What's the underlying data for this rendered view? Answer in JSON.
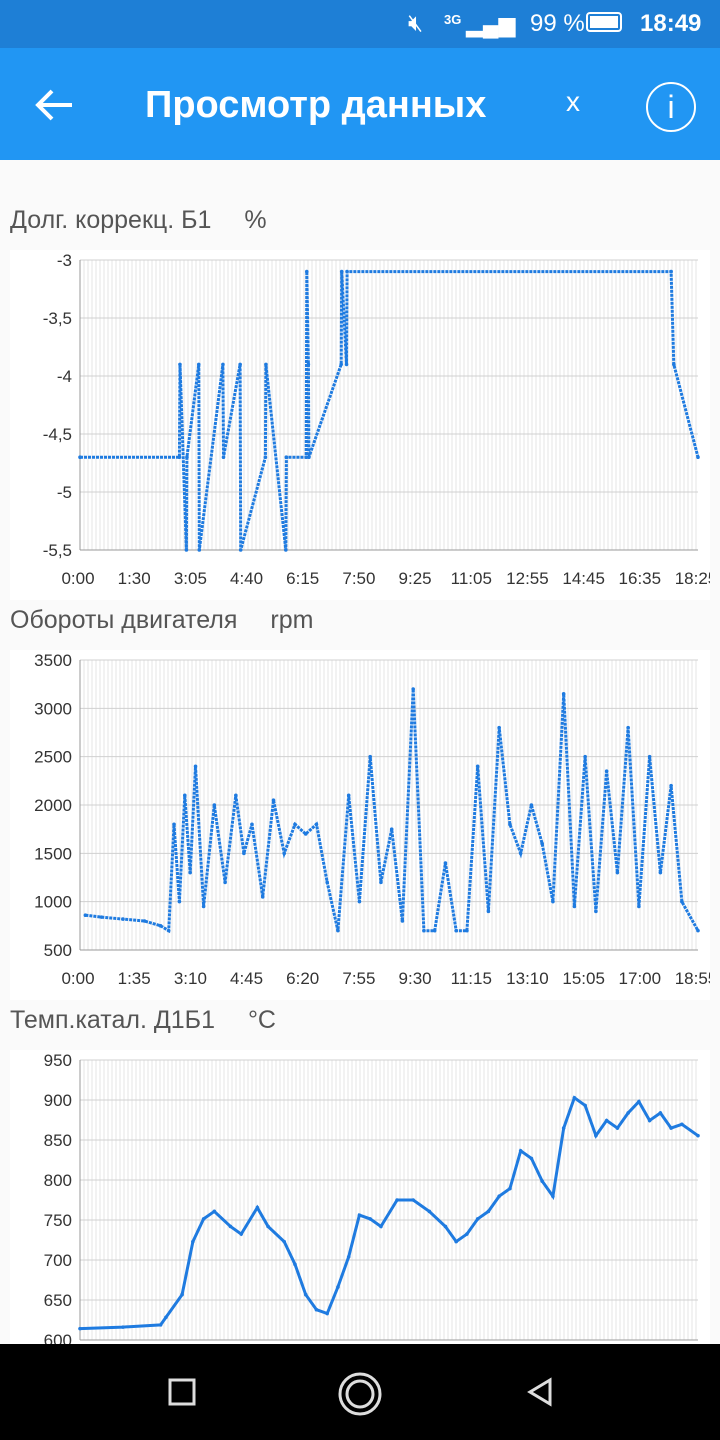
{
  "status": {
    "signal": "3G",
    "battery_pct": "99 %",
    "time": "18:49"
  },
  "appbar": {
    "title": "Просмотр данных",
    "close_label": "x",
    "info_label": "i"
  },
  "charts": [
    {
      "title": "Долг. коррекц. Б1",
      "unit": "%",
      "chart_data": {
        "type": "line",
        "title": "Долг. коррекц. Б1 %",
        "x_tick_labels": [
          "0:00",
          "1:30",
          "3:05",
          "4:40",
          "6:15",
          "7:50",
          "9:25",
          "11:05",
          "12:55",
          "14:45",
          "16:35",
          "18:25"
        ],
        "y_tick_labels": [
          "-3",
          "-3,5",
          "-4",
          "-4,5",
          "-5",
          "-5,5"
        ],
        "ylim": [
          -5.5,
          -3
        ],
        "x_minutes": [
          0,
          185,
          186,
          198,
          199,
          221,
          222,
          266,
          267,
          298,
          299,
          345,
          346,
          383,
          384,
          421,
          422,
          425,
          426,
          486,
          487,
          496,
          497,
          1100,
          1105,
          1150
        ],
        "y": [
          -4.7,
          -4.7,
          -3.9,
          -5.5,
          -4.7,
          -3.9,
          -5.5,
          -3.9,
          -4.7,
          -3.9,
          -5.5,
          -4.7,
          -3.9,
          -5.5,
          -4.7,
          -4.7,
          -3.1,
          -3.9,
          -4.7,
          -3.9,
          -3.1,
          -3.9,
          -3.1,
          -3.1,
          -3.9,
          -4.7
        ],
        "grid": true
      }
    },
    {
      "title": "Обороты двигателя",
      "unit": "rpm",
      "chart_data": {
        "type": "line",
        "title": "Обороты двигателя rpm",
        "x_tick_labels": [
          "0:00",
          "1:35",
          "3:10",
          "4:45",
          "6:20",
          "7:55",
          "9:30",
          "11:15",
          "13:10",
          "15:05",
          "17:00",
          "18:55"
        ],
        "y_tick_labels": [
          "3500",
          "3000",
          "2500",
          "2000",
          "1500",
          "1000",
          "500"
        ],
        "ylim": [
          500,
          3500
        ],
        "x_minutes": [
          10,
          40,
          80,
          120,
          150,
          165,
          175,
          185,
          195,
          205,
          215,
          230,
          250,
          270,
          290,
          305,
          320,
          340,
          360,
          380,
          400,
          420,
          440,
          460,
          480,
          500,
          520,
          540,
          560,
          580,
          600,
          620,
          640,
          660,
          680,
          700,
          720,
          740,
          760,
          780,
          800,
          820,
          840,
          860,
          880,
          900,
          920,
          940,
          960,
          980,
          1000,
          1020,
          1040,
          1060,
          1080,
          1100,
          1120,
          1150
        ],
        "y": [
          860,
          840,
          820,
          800,
          750,
          700,
          1800,
          1000,
          2100,
          1300,
          2400,
          950,
          2000,
          1200,
          2100,
          1500,
          1800,
          1050,
          2050,
          1500,
          1800,
          1700,
          1800,
          1200,
          700,
          2100,
          1000,
          2500,
          1200,
          1750,
          800,
          3200,
          700,
          700,
          1400,
          700,
          700,
          2400,
          900,
          2800,
          1800,
          1500,
          2000,
          1600,
          1000,
          3150,
          950,
          2500,
          900,
          2350,
          1300,
          2800,
          950,
          2500,
          1300,
          2200,
          1000,
          700
        ],
        "grid": true
      }
    },
    {
      "title": "Темп.катал. Д1Б1",
      "unit": "°C",
      "chart_data": {
        "type": "line",
        "title": "Темп.катал. Д1Б1 °C",
        "x_tick_labels": [],
        "y_tick_labels": [
          "950",
          "900",
          "850",
          "800",
          "750",
          "700",
          "650",
          "600"
        ],
        "ylim": [
          580,
          950
        ],
        "x_minutes": [
          0,
          80,
          150,
          160,
          190,
          210,
          230,
          250,
          280,
          300,
          330,
          350,
          380,
          400,
          420,
          440,
          460,
          480,
          500,
          520,
          540,
          560,
          590,
          620,
          650,
          680,
          700,
          720,
          740,
          760,
          780,
          800,
          820,
          840,
          860,
          880,
          900,
          920,
          940,
          960,
          980,
          1000,
          1020,
          1040,
          1060,
          1080,
          1100,
          1120,
          1150
        ],
        "y": [
          595,
          597,
          600,
          610,
          640,
          710,
          740,
          750,
          730,
          720,
          755,
          730,
          710,
          680,
          640,
          620,
          615,
          650,
          690,
          745,
          740,
          730,
          765,
          765,
          750,
          730,
          710,
          720,
          740,
          750,
          770,
          780,
          830,
          820,
          790,
          770,
          860,
          900,
          890,
          850,
          870,
          860,
          880,
          895,
          870,
          880,
          860,
          865,
          850
        ],
        "grid": true
      }
    }
  ]
}
